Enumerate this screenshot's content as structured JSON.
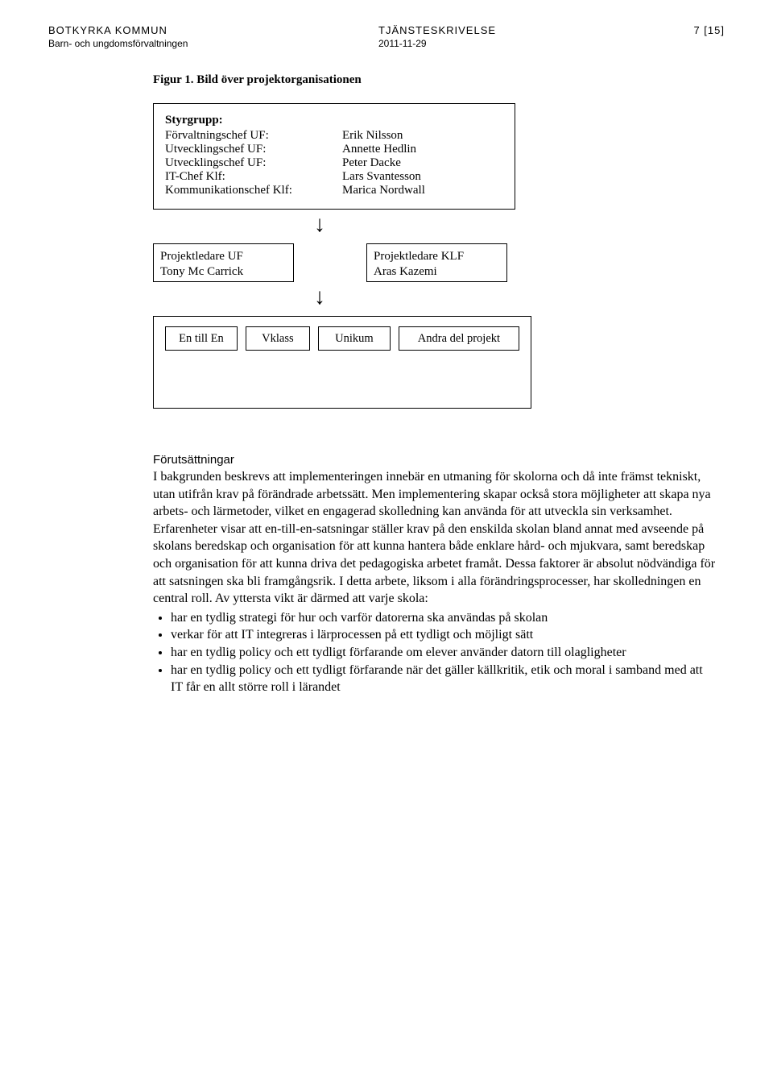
{
  "header": {
    "org": "BOTKYRKA KOMMUN",
    "dept": "Barn- och ungdomsförvaltningen",
    "doctype": "TJÄNSTESKRIVELSE",
    "page": "7 [15]",
    "date": "2011-11-29"
  },
  "figure": {
    "title": "Figur 1. Bild över projektorganisationen",
    "styrgrupp": {
      "heading": "Styrgrupp:",
      "rows": [
        {
          "role": "Förvaltningschef UF:",
          "name": "Erik Nilsson"
        },
        {
          "role": "Utvecklingschef UF:",
          "name": "Annette Hedlin"
        },
        {
          "role": "Utvecklingschef UF:",
          "name": "Peter Dacke"
        },
        {
          "role": "IT-Chef Klf:",
          "name": "Lars Svantesson"
        },
        {
          "role": "Kommunikationschef Klf:",
          "name": "Marica Nordwall"
        }
      ]
    },
    "projektledare": [
      {
        "line1": "Projektledare UF",
        "line2": "Tony Mc Carrick"
      },
      {
        "line1": "Projektledare KLF",
        "line2": "Aras Kazemi"
      }
    ],
    "subprojects": [
      "En till En",
      "Vklass",
      "Unikum",
      "Andra del projekt"
    ]
  },
  "section": {
    "heading": "Förutsättningar",
    "para": "I bakgrunden beskrevs att implementeringen innebär en utmaning för skolorna och då inte främst tekniskt, utan utifrån krav på förändrade arbetssätt. Men implementering skapar också stora möjligheter att skapa nya arbets- och lärmetoder, vilket en engagerad skolledning kan använda för att utveckla sin verksamhet. Erfarenheter visar att en-till-en-satsningar ställer krav på den enskilda skolan bland annat med avseende på skolans beredskap och organisation för att kunna hantera både enklare hård- och mjukvara, samt beredskap och organisation för att kunna driva det pedagogiska arbetet framåt. Dessa faktorer är absolut nödvändiga för att satsningen ska bli framgångsrik. I detta arbete, liksom i alla förändringsprocesser, har skolledningen en central roll. Av yttersta vikt är därmed att varje skola:",
    "bullets": [
      "har en tydlig strategi för hur och varför datorerna ska användas på skolan",
      "verkar för att IT integreras i lärprocessen på ett tydligt och möjligt sätt",
      "har en tydlig policy och ett tydligt förfarande om elever använder datorn till olagligheter",
      "har en tydlig policy och ett tydligt förfarande när det gäller källkritik, etik och moral i samband med att IT får en allt större roll i lärandet"
    ]
  }
}
